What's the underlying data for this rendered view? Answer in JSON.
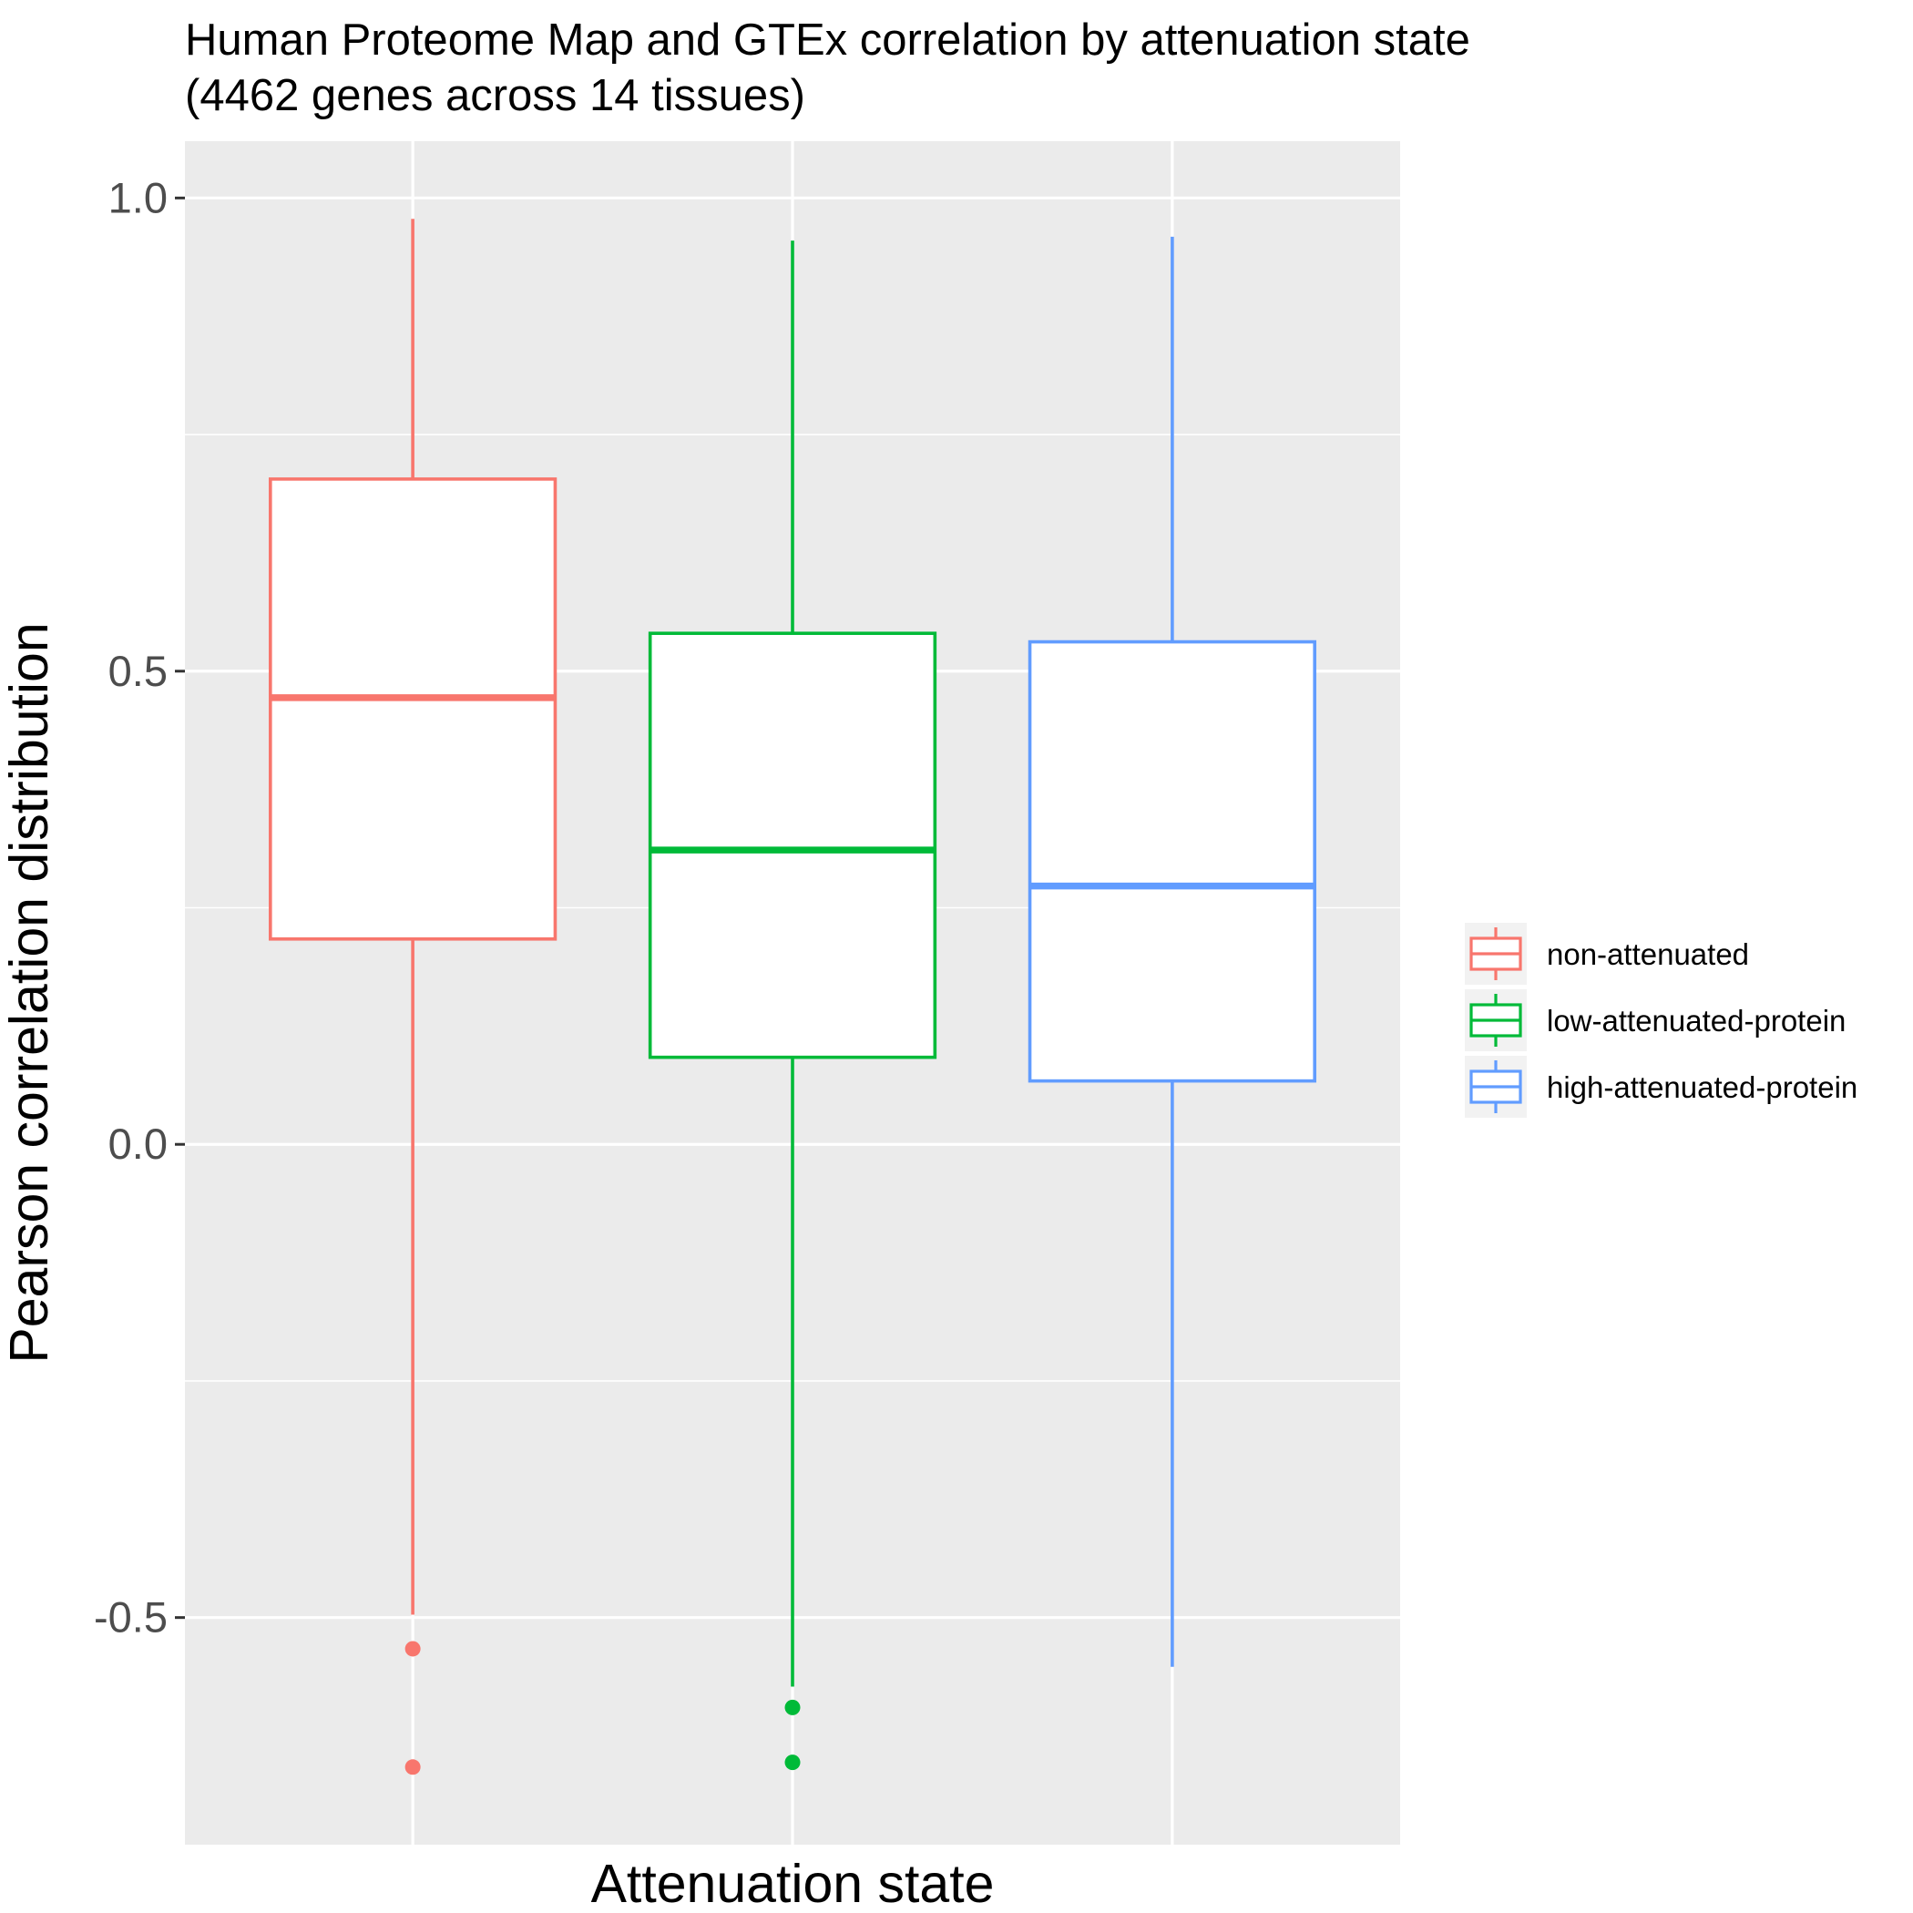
{
  "chart_data": {
    "type": "boxplot",
    "title": "Human Proteome Map and GTEx correlation by attenuation state",
    "subtitle": "(4462 genes across 14 tissues)",
    "xlabel": "Attenuation state",
    "ylabel": "Pearson correlation distribution",
    "ylim": [
      -0.74,
      1.06
    ],
    "yticks": [
      -0.5,
      0.0,
      0.5,
      1.0
    ],
    "ytick_labels": [
      "-0.5",
      "0.0",
      "0.5",
      "1.0"
    ],
    "grid": true,
    "legend_position": "right",
    "categories": [
      "non-attenuated",
      "low-attenuated-protein",
      "high-attenuated-protein"
    ],
    "series": [
      {
        "name": "non-attenuated",
        "color": "#F8766D",
        "whisker_low": -0.497,
        "q1": 0.217,
        "median": 0.472,
        "q3": 0.703,
        "whisker_high": 0.978,
        "outliers": [
          -0.533,
          -0.658
        ]
      },
      {
        "name": "low-attenuated-protein",
        "color": "#00BA38",
        "whisker_low": -0.573,
        "q1": 0.092,
        "median": 0.311,
        "q3": 0.54,
        "whisker_high": 0.955,
        "outliers": [
          -0.595,
          -0.653
        ]
      },
      {
        "name": "high-attenuated-protein",
        "color": "#619CFF",
        "whisker_low": -0.552,
        "q1": 0.067,
        "median": 0.273,
        "q3": 0.531,
        "whisker_high": 0.959,
        "outliers": []
      }
    ]
  },
  "style": {
    "panel_background": "#EBEBEB",
    "grid_color": "#FFFFFF",
    "tick_color": "#333333",
    "box_fill": "#FFFFFF",
    "legend_key_background": "#F2F2F2"
  }
}
